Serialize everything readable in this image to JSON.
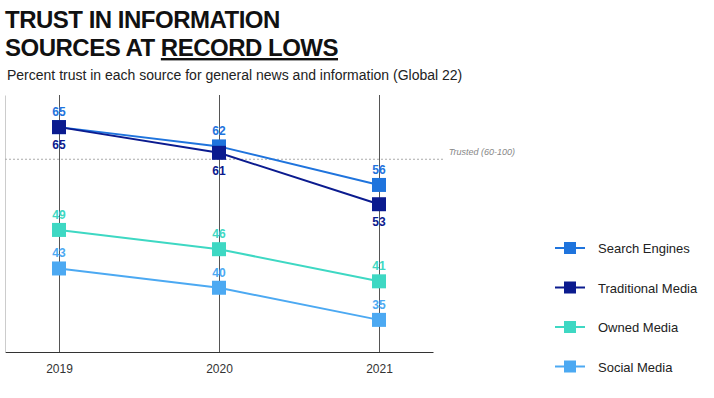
{
  "chart_data": {
    "type": "line",
    "title": "TRUST IN INFORMATION SOURCES AT RECORD LOWS",
    "subtitle": "Percent trust in each source for general news and information (Global 22)",
    "categories": [
      "2019",
      "2020",
      "2021"
    ],
    "series": [
      {
        "name": "Search Engines",
        "color": "#1f74dd",
        "marker": "square",
        "values": [
          65,
          62,
          56
        ]
      },
      {
        "name": "Traditional Media",
        "color": "#0b1b8f",
        "marker": "square",
        "values": [
          65,
          61,
          53
        ]
      },
      {
        "name": "Owned Media",
        "color": "#3ed8c3",
        "marker": "square",
        "values": [
          49,
          46,
          41
        ]
      },
      {
        "name": "Social Media",
        "color": "#4ca9f2",
        "marker": "square",
        "values": [
          43,
          40,
          35
        ]
      }
    ],
    "ylim": [
      30,
      70
    ],
    "yticks": [],
    "tick_labels": "x",
    "data_labels": true,
    "legend": "right",
    "annotations": [
      {
        "text": "Trusted (60-100)",
        "y": 60
      }
    ]
  }
}
